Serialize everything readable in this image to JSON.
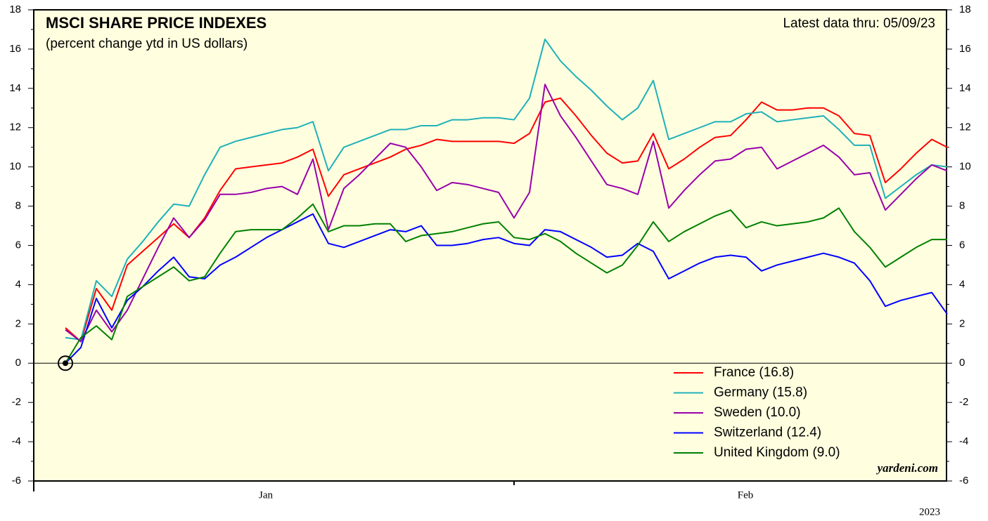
{
  "chart_data": {
    "type": "line",
    "title": "MSCI SHARE PRICE INDEXES",
    "subtitle": "(percent change ytd in US dollars)",
    "note": "Latest data thru: 05/09/23",
    "source": "yardeni.com",
    "months": [
      "Jan",
      "Feb"
    ],
    "year": "2023",
    "ylim": [
      -6,
      18
    ],
    "yticks": [
      -6,
      -4,
      -2,
      0,
      2,
      4,
      6,
      8,
      10,
      12,
      14,
      16,
      18
    ],
    "y2lim": [
      -6,
      18
    ],
    "y2ticks": [
      -6,
      -4,
      -2,
      0,
      2,
      4,
      6,
      8,
      10,
      12,
      14,
      16,
      18
    ],
    "legend": "lower right",
    "series": [
      {
        "name": "France (16.8)",
        "color": "#ff0000",
        "values": [
          1.8,
          1.1,
          3.8,
          2.7,
          5.0,
          5.7,
          6.4,
          7.1,
          6.4,
          7.4,
          8.8,
          9.9,
          10.0,
          10.1,
          10.2,
          10.5,
          10.9,
          8.5,
          9.6,
          9.9,
          10.2,
          10.5,
          10.9,
          11.1,
          11.4,
          11.3,
          11.3,
          11.3,
          11.3,
          11.2,
          11.7,
          13.3,
          13.5,
          12.6,
          11.6,
          10.7,
          10.2,
          10.3,
          11.7,
          9.9,
          10.4,
          11.0,
          11.5,
          11.6,
          12.4,
          13.3,
          12.9,
          12.9,
          13.0,
          13.0,
          12.6,
          11.7,
          11.6,
          9.2,
          9.9,
          10.7,
          11.4,
          11.0
        ]
      },
      {
        "name": "Germany (15.8)",
        "color": "#1fb0b8",
        "values": [
          1.3,
          1.2,
          4.2,
          3.4,
          5.3,
          6.2,
          7.2,
          8.1,
          8.0,
          9.6,
          11.0,
          11.3,
          11.5,
          11.7,
          11.9,
          12.0,
          12.3,
          9.8,
          11.0,
          11.3,
          11.6,
          11.9,
          11.9,
          12.1,
          12.1,
          12.4,
          12.4,
          12.5,
          12.5,
          12.4,
          13.5,
          16.5,
          15.4,
          14.6,
          13.9,
          13.1,
          12.4,
          13.0,
          14.4,
          11.4,
          11.7,
          12.0,
          12.3,
          12.3,
          12.7,
          12.8,
          12.3,
          12.4,
          12.5,
          12.6,
          11.9,
          11.1,
          11.1,
          8.4,
          9.0,
          9.6,
          10.1,
          10.0
        ]
      },
      {
        "name": "Sweden (10.0)",
        "color": "#9900aa",
        "values": [
          1.7,
          1.1,
          2.7,
          1.6,
          2.7,
          4.3,
          5.9,
          7.4,
          6.4,
          7.3,
          8.6,
          8.6,
          8.7,
          8.9,
          9.0,
          8.6,
          10.4,
          6.8,
          8.9,
          9.6,
          10.4,
          11.2,
          11.0,
          10.0,
          8.8,
          9.2,
          9.1,
          8.9,
          8.7,
          7.4,
          8.7,
          14.2,
          12.6,
          11.5,
          10.3,
          9.1,
          8.9,
          8.6,
          11.3,
          7.9,
          8.8,
          9.6,
          10.3,
          10.4,
          10.9,
          11.0,
          9.9,
          10.3,
          10.7,
          11.1,
          10.5,
          9.6,
          9.7,
          7.8,
          8.6,
          9.4,
          10.1,
          9.8
        ]
      },
      {
        "name": "Switzerland (12.4)",
        "color": "#0000ff",
        "values": [
          0.0,
          0.8,
          3.3,
          1.8,
          3.2,
          3.9,
          4.7,
          5.4,
          4.4,
          4.3,
          5.0,
          5.4,
          5.9,
          6.4,
          6.8,
          7.2,
          7.6,
          6.1,
          5.9,
          6.2,
          6.5,
          6.8,
          6.7,
          7.0,
          6.0,
          6.0,
          6.1,
          6.3,
          6.4,
          6.1,
          6.0,
          6.8,
          6.7,
          6.3,
          5.9,
          5.4,
          5.5,
          6.1,
          5.7,
          4.3,
          4.7,
          5.1,
          5.4,
          5.5,
          5.4,
          4.7,
          5.0,
          5.2,
          5.4,
          5.6,
          5.4,
          5.1,
          4.2,
          2.9,
          3.2,
          3.4,
          3.6,
          2.5
        ]
      },
      {
        "name": "United Kingdom (9.0)",
        "color": "#008000",
        "values": [
          0.0,
          1.3,
          1.9,
          1.2,
          3.4,
          3.9,
          4.4,
          4.9,
          4.2,
          4.4,
          5.6,
          6.7,
          6.8,
          6.8,
          6.8,
          7.4,
          8.1,
          6.7,
          7.0,
          7.0,
          7.1,
          7.1,
          6.2,
          6.5,
          6.6,
          6.7,
          6.9,
          7.1,
          7.2,
          6.4,
          6.3,
          6.6,
          6.2,
          5.6,
          5.1,
          4.6,
          5.0,
          6.0,
          7.2,
          6.2,
          6.7,
          7.1,
          7.5,
          7.8,
          6.9,
          7.2,
          7.0,
          7.1,
          7.2,
          7.4,
          7.9,
          6.7,
          5.9,
          4.9,
          5.4,
          5.9,
          6.3,
          6.3
        ]
      }
    ]
  }
}
